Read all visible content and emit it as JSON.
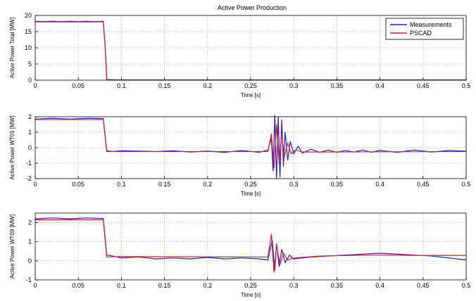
{
  "figure_title": "Active Power Production",
  "colors": {
    "measurements": "#1f1fdf",
    "pscad": "#e01a1a",
    "grid": "#9a9a9a",
    "axis": "#000000"
  },
  "chart_data": [
    {
      "type": "line",
      "title": "Active Power Production",
      "xlabel": "Time [s]",
      "ylabel": "Active Power Total [MW]",
      "xlim": [
        0,
        0.5
      ],
      "ylim": [
        0,
        20
      ],
      "xticks": [
        0,
        0.05,
        0.1,
        0.15,
        0.2,
        0.25,
        0.3,
        0.35,
        0.4,
        0.45,
        0.5
      ],
      "xtick_labels": [
        "0",
        "0.05",
        "0.1",
        "0.15",
        "0.2",
        "0.25",
        "0.3",
        "0.35",
        "0.4",
        "0.45",
        "0.5"
      ],
      "yticks": [
        0,
        5,
        10,
        15,
        20
      ],
      "ytick_labels": [
        "0",
        "5",
        "10",
        "15",
        "20"
      ],
      "grid": true,
      "legend": {
        "position": "top-right",
        "entries": [
          "Measurements",
          "PSCAD"
        ]
      },
      "series": [
        {
          "name": "Measurements",
          "color": "#1f1fdf",
          "points": [
            [
              0,
              18.2
            ],
            [
              0.01,
              18.1
            ],
            [
              0.02,
              18.2
            ],
            [
              0.03,
              18.1
            ],
            [
              0.04,
              18.2
            ],
            [
              0.05,
              18.1
            ],
            [
              0.06,
              18.2
            ],
            [
              0.07,
              18.1
            ],
            [
              0.079,
              18.2
            ],
            [
              0.0815,
              9
            ],
            [
              0.083,
              0.2
            ],
            [
              0.1,
              0.1
            ],
            [
              0.2,
              0.1
            ],
            [
              0.3,
              0.1
            ],
            [
              0.4,
              0.1
            ],
            [
              0.5,
              0.1
            ]
          ]
        },
        {
          "name": "PSCAD",
          "color": "#e01a1a",
          "points": [
            [
              0,
              18.0
            ],
            [
              0.079,
              18.0
            ],
            [
              0.0815,
              9
            ],
            [
              0.083,
              0.05
            ],
            [
              0.5,
              0.05
            ]
          ]
        }
      ]
    },
    {
      "type": "line",
      "xlabel": "Time [s]",
      "ylabel": "Active Power WT01 [MW]",
      "xlim": [
        0,
        0.5
      ],
      "ylim": [
        -2,
        2
      ],
      "xticks": [
        0,
        0.05,
        0.1,
        0.15,
        0.2,
        0.25,
        0.3,
        0.35,
        0.4,
        0.45,
        0.5
      ],
      "xtick_labels": [
        "0",
        "0.05",
        "0.1",
        "0.15",
        "0.2",
        "0.25",
        "0.3",
        "0.35",
        "0.4",
        "0.45",
        "0.5"
      ],
      "yticks": [
        -2,
        -1,
        0,
        1,
        2
      ],
      "ytick_labels": [
        "-2",
        "-1",
        "0",
        "1",
        "2"
      ],
      "grid": true,
      "series": [
        {
          "name": "Measurements",
          "color": "#1f1fdf",
          "points": [
            [
              0,
              1.85
            ],
            [
              0.02,
              1.9
            ],
            [
              0.04,
              1.85
            ],
            [
              0.06,
              1.9
            ],
            [
              0.079,
              1.88
            ],
            [
              0.083,
              -0.2
            ],
            [
              0.09,
              -0.25
            ],
            [
              0.1,
              -0.2
            ],
            [
              0.12,
              -0.22
            ],
            [
              0.14,
              -0.25
            ],
            [
              0.16,
              -0.2
            ],
            [
              0.18,
              -0.28
            ],
            [
              0.2,
              -0.22
            ],
            [
              0.22,
              -0.3
            ],
            [
              0.24,
              -0.18
            ],
            [
              0.26,
              -0.3
            ],
            [
              0.27,
              -0.15
            ],
            [
              0.274,
              0.6
            ],
            [
              0.276,
              -1.5
            ],
            [
              0.278,
              2.1
            ],
            [
              0.28,
              -2.0
            ],
            [
              0.282,
              2.0
            ],
            [
              0.284,
              -1.9
            ],
            [
              0.286,
              1.8
            ],
            [
              0.288,
              -1.2
            ],
            [
              0.29,
              1.0
            ],
            [
              0.293,
              -0.8
            ],
            [
              0.296,
              0.4
            ],
            [
              0.3,
              -0.4
            ],
            [
              0.305,
              0.1
            ],
            [
              0.31,
              -0.35
            ],
            [
              0.32,
              -0.1
            ],
            [
              0.33,
              -0.3
            ],
            [
              0.34,
              -0.15
            ],
            [
              0.35,
              -0.3
            ],
            [
              0.36,
              -0.18
            ],
            [
              0.37,
              -0.28
            ],
            [
              0.38,
              -0.15
            ],
            [
              0.39,
              -0.3
            ],
            [
              0.4,
              -0.18
            ],
            [
              0.42,
              -0.3
            ],
            [
              0.44,
              -0.15
            ],
            [
              0.46,
              -0.28
            ],
            [
              0.48,
              -0.18
            ],
            [
              0.5,
              -0.22
            ]
          ]
        },
        {
          "name": "PSCAD",
          "color": "#e01a1a",
          "points": [
            [
              0,
              1.82
            ],
            [
              0.079,
              1.82
            ],
            [
              0.083,
              -0.25
            ],
            [
              0.27,
              -0.25
            ],
            [
              0.274,
              0.9
            ],
            [
              0.277,
              -1.3
            ],
            [
              0.28,
              1.5
            ],
            [
              0.283,
              -1.0
            ],
            [
              0.286,
              0.9
            ],
            [
              0.289,
              -0.6
            ],
            [
              0.293,
              0.3
            ],
            [
              0.297,
              -0.4
            ],
            [
              0.302,
              -0.15
            ],
            [
              0.31,
              -0.28
            ],
            [
              0.5,
              -0.25
            ]
          ]
        }
      ]
    },
    {
      "type": "line",
      "xlabel": "Time [s]",
      "ylabel": "Active Power WT09 [MW]",
      "xlim": [
        0,
        0.5
      ],
      "ylim": [
        -1,
        2.5
      ],
      "xticks": [
        0,
        0.05,
        0.1,
        0.15,
        0.2,
        0.25,
        0.3,
        0.35,
        0.4,
        0.45,
        0.5
      ],
      "xtick_labels": [
        "0",
        "0.05",
        "0.1",
        "0.15",
        "0.2",
        "0.25",
        "0.3",
        "0.35",
        "0.4",
        "0.45",
        "0.5"
      ],
      "yticks": [
        -1,
        0,
        1,
        2
      ],
      "ytick_labels": [
        "-1",
        "0",
        "1",
        "2"
      ],
      "grid": true,
      "series": [
        {
          "name": "Measurements",
          "color": "#1f1fdf",
          "points": [
            [
              0,
              2.2
            ],
            [
              0.02,
              2.25
            ],
            [
              0.04,
              2.2
            ],
            [
              0.06,
              2.25
            ],
            [
              0.079,
              2.22
            ],
            [
              0.083,
              0.3
            ],
            [
              0.09,
              0.25
            ],
            [
              0.1,
              0.15
            ],
            [
              0.12,
              0.2
            ],
            [
              0.14,
              0.1
            ],
            [
              0.16,
              0.15
            ],
            [
              0.18,
              0.1
            ],
            [
              0.2,
              0.18
            ],
            [
              0.22,
              0.1
            ],
            [
              0.24,
              0.15
            ],
            [
              0.26,
              0.1
            ],
            [
              0.27,
              0.05
            ],
            [
              0.275,
              1.1
            ],
            [
              0.278,
              -0.5
            ],
            [
              0.28,
              0.9
            ],
            [
              0.283,
              -0.3
            ],
            [
              0.286,
              0.6
            ],
            [
              0.29,
              -0.1
            ],
            [
              0.295,
              0.3
            ],
            [
              0.3,
              0.1
            ],
            [
              0.32,
              0.2
            ],
            [
              0.34,
              0.25
            ],
            [
              0.36,
              0.3
            ],
            [
              0.38,
              0.35
            ],
            [
              0.4,
              0.4
            ],
            [
              0.42,
              0.35
            ],
            [
              0.44,
              0.3
            ],
            [
              0.46,
              0.25
            ],
            [
              0.48,
              0.15
            ],
            [
              0.5,
              0.05
            ]
          ]
        },
        {
          "name": "PSCAD",
          "color": "#e01a1a",
          "points": [
            [
              0,
              2.15
            ],
            [
              0.079,
              2.15
            ],
            [
              0.083,
              0.2
            ],
            [
              0.1,
              0.22
            ],
            [
              0.27,
              0.2
            ],
            [
              0.274,
              1.4
            ],
            [
              0.277,
              -0.6
            ],
            [
              0.28,
              0.8
            ],
            [
              0.284,
              -0.2
            ],
            [
              0.288,
              0.4
            ],
            [
              0.293,
              0.05
            ],
            [
              0.3,
              0.15
            ],
            [
              0.33,
              0.25
            ],
            [
              0.36,
              0.28
            ],
            [
              0.4,
              0.3
            ],
            [
              0.45,
              0.28
            ],
            [
              0.5,
              0.28
            ]
          ]
        }
      ]
    }
  ]
}
